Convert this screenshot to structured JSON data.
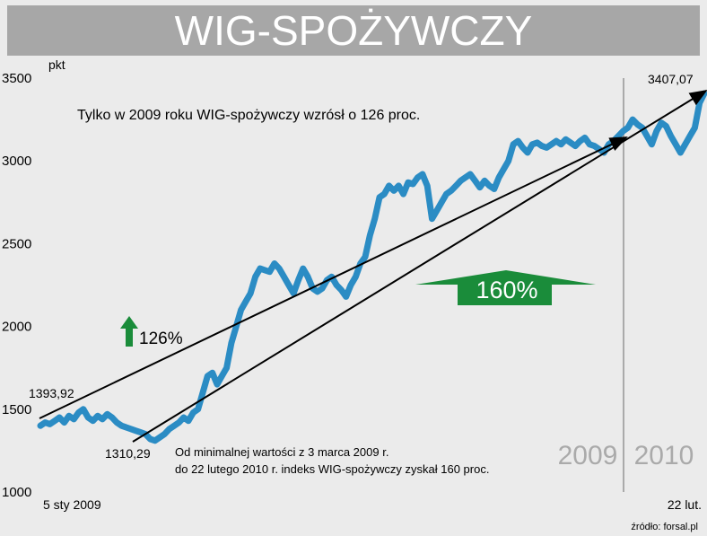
{
  "title": "WIG-SPOŻYWCZY",
  "source": "źródło: forsal.pl",
  "colors": {
    "line": "#2b8cc4",
    "background": "#ebebeb",
    "title_bg": "#a7a7a7",
    "arrow_green": "#1a8c3a",
    "year_text": "#aaaaaa"
  },
  "chart_data": {
    "type": "line",
    "title": "WIG-SPOŻYWCZY",
    "ylabel": "pkt",
    "xlabel": "",
    "ylim": [
      1000,
      3500
    ],
    "yticks": [
      1000,
      1500,
      2000,
      2500,
      3000,
      3500
    ],
    "x_labels": {
      "start": "5 sty 2009",
      "end": "22 lut."
    },
    "year_labels": [
      "2009",
      "2010"
    ],
    "grid": false,
    "series": [
      {
        "name": "",
        "values": [
          1400,
          1420,
          1410,
          1430,
          1450,
          1420,
          1460,
          1440,
          1480,
          1500,
          1450,
          1430,
          1460,
          1440,
          1470,
          1450,
          1420,
          1400,
          1390,
          1380,
          1370,
          1360,
          1350,
          1320,
          1310,
          1330,
          1350,
          1380,
          1400,
          1420,
          1450,
          1430,
          1480,
          1500,
          1600,
          1700,
          1720,
          1650,
          1700,
          1750,
          1900,
          2000,
          2100,
          2150,
          2200,
          2300,
          2350,
          2340,
          2330,
          2380,
          2350,
          2300,
          2250,
          2200,
          2280,
          2350,
          2300,
          2230,
          2210,
          2230,
          2280,
          2300,
          2250,
          2220,
          2180,
          2250,
          2300,
          2380,
          2420,
          2550,
          2650,
          2780,
          2800,
          2850,
          2820,
          2850,
          2800,
          2870,
          2860,
          2900,
          2920,
          2850,
          2650,
          2700,
          2750,
          2800,
          2820,
          2850,
          2880,
          2900,
          2920,
          2880,
          2840,
          2880,
          2850,
          2830,
          2900,
          2950,
          3000,
          3100,
          3120,
          3080,
          3050,
          3100,
          3110,
          3090,
          3080,
          3100,
          3120,
          3100,
          3130,
          3110,
          3090,
          3120,
          3140,
          3100,
          3090,
          3070,
          3050,
          3100,
          3120,
          3150,
          3180,
          3200,
          3250,
          3220,
          3200,
          3150,
          3100,
          3180,
          3230,
          3210,
          3150,
          3100,
          3050,
          3100,
          3150,
          3200,
          3350,
          3407.07
        ]
      }
    ],
    "annotations": [
      {
        "text": "1393,92",
        "value": 1393.92
      },
      {
        "text": "1310,29",
        "value": 1310.29
      },
      {
        "text": "3407,07",
        "value": 3407.07
      },
      {
        "text": "Tylko w 2009 roku WIG-spożywczy wzrósł o 126 proc."
      },
      {
        "text": "126%"
      },
      {
        "text": "160%"
      },
      {
        "text": "Od minimalnej wartości z 3 marca 2009 r."
      },
      {
        "text": "do 22 lutego 2010 r. indeks WIG-spożywczy zyskał 160 proc."
      }
    ]
  }
}
